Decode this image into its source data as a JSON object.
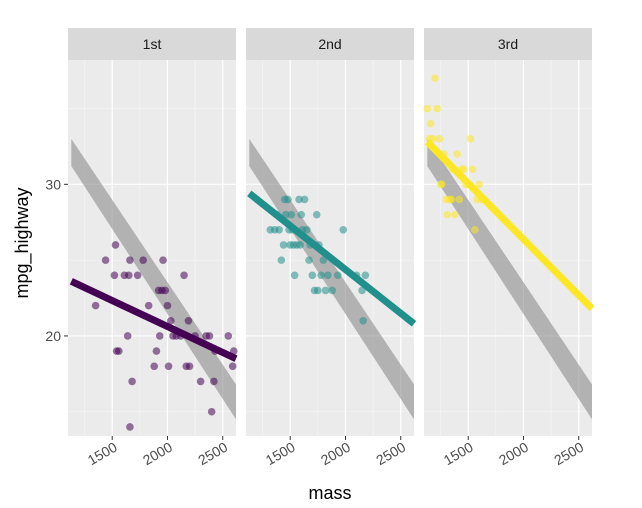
{
  "chart_data": {
    "type": "scatter",
    "facet_variable": "",
    "xlabel": "mass",
    "ylabel": "mpg_highway",
    "xlim": [
      1100,
      2620
    ],
    "ylim": [
      13.4,
      38.2
    ],
    "x_ticks": [
      1500,
      2000,
      2500
    ],
    "x_tick_labels": [
      "1500",
      "2000",
      "2500"
    ],
    "y_ticks": [
      20,
      30
    ],
    "y_tick_labels": [
      "20",
      "30"
    ],
    "grid": true,
    "legend": "none",
    "panels": [
      {
        "label": "1st",
        "color": "#440154",
        "points": [
          [
            1350,
            22
          ],
          [
            1440,
            25
          ],
          [
            1530,
            26
          ],
          [
            1520,
            24
          ],
          [
            1540,
            19
          ],
          [
            1560,
            19
          ],
          [
            1610,
            24
          ],
          [
            1640,
            20
          ],
          [
            1650,
            24
          ],
          [
            1660,
            25
          ],
          [
            1680,
            17
          ],
          [
            1660,
            14
          ],
          [
            1730,
            24
          ],
          [
            1780,
            25
          ],
          [
            1830,
            22
          ],
          [
            1880,
            18
          ],
          [
            1900,
            19
          ],
          [
            1920,
            23
          ],
          [
            1930,
            20
          ],
          [
            1950,
            23
          ],
          [
            1960,
            25
          ],
          [
            1980,
            23
          ],
          [
            2000,
            22
          ],
          [
            2010,
            18
          ],
          [
            2030,
            21
          ],
          [
            2050,
            20
          ],
          [
            2080,
            20
          ],
          [
            2120,
            20
          ],
          [
            2150,
            24
          ],
          [
            2170,
            18
          ],
          [
            2200,
            18
          ],
          [
            2190,
            21
          ],
          [
            2250,
            20
          ],
          [
            2300,
            17
          ],
          [
            2350,
            20
          ],
          [
            2380,
            20
          ],
          [
            2400,
            15
          ],
          [
            2420,
            17
          ],
          [
            2430,
            19
          ],
          [
            2550,
            20
          ],
          [
            2590,
            18
          ],
          [
            2600,
            19
          ]
        ],
        "fit_line": [
          [
            1130,
            23.6
          ],
          [
            2620,
            18.5
          ]
        ],
        "reference_band": {
          "x": [
            1130,
            2620
          ],
          "upper": [
            33.0,
            16.8
          ],
          "lower": [
            31.2,
            14.5
          ]
        }
      },
      {
        "label": "2nd",
        "color": "#21908c",
        "points": [
          [
            1320,
            27
          ],
          [
            1360,
            27
          ],
          [
            1380,
            28
          ],
          [
            1400,
            27
          ],
          [
            1420,
            25
          ],
          [
            1440,
            26
          ],
          [
            1450,
            29
          ],
          [
            1460,
            28
          ],
          [
            1480,
            29
          ],
          [
            1490,
            27
          ],
          [
            1500,
            26
          ],
          [
            1510,
            28
          ],
          [
            1520,
            27
          ],
          [
            1530,
            26
          ],
          [
            1540,
            24
          ],
          [
            1560,
            26
          ],
          [
            1580,
            29
          ],
          [
            1590,
            26
          ],
          [
            1600,
            28
          ],
          [
            1610,
            27
          ],
          [
            1630,
            29
          ],
          [
            1650,
            27
          ],
          [
            1670,
            25
          ],
          [
            1680,
            26
          ],
          [
            1700,
            24
          ],
          [
            1720,
            23
          ],
          [
            1740,
            28
          ],
          [
            1750,
            23
          ],
          [
            1760,
            26
          ],
          [
            1780,
            24
          ],
          [
            1800,
            25
          ],
          [
            1820,
            23
          ],
          [
            1840,
            24
          ],
          [
            1880,
            23
          ],
          [
            1930,
            24
          ],
          [
            1980,
            27
          ],
          [
            2100,
            24
          ],
          [
            2150,
            23
          ],
          [
            2160,
            21
          ],
          [
            2180,
            24
          ]
        ],
        "fit_line": [
          [
            1130,
            29.4
          ],
          [
            2620,
            20.8
          ]
        ],
        "reference_band": {
          "x": [
            1130,
            2620
          ],
          "upper": [
            33.0,
            16.8
          ],
          "lower": [
            31.2,
            14.5
          ]
        }
      },
      {
        "label": "3rd",
        "color": "#fde725",
        "points": [
          [
            1130,
            35
          ],
          [
            1150,
            33
          ],
          [
            1160,
            34
          ],
          [
            1180,
            33
          ],
          [
            1200,
            37
          ],
          [
            1220,
            35
          ],
          [
            1240,
            33
          ],
          [
            1250,
            30
          ],
          [
            1260,
            30
          ],
          [
            1280,
            32
          ],
          [
            1300,
            29
          ],
          [
            1310,
            28
          ],
          [
            1330,
            29
          ],
          [
            1350,
            29
          ],
          [
            1360,
            31
          ],
          [
            1380,
            28
          ],
          [
            1400,
            32
          ],
          [
            1420,
            29
          ],
          [
            1440,
            31
          ],
          [
            1460,
            31
          ],
          [
            1480,
            30
          ],
          [
            1520,
            33
          ],
          [
            1540,
            31
          ],
          [
            1560,
            27
          ],
          [
            1580,
            29
          ],
          [
            1600,
            30
          ],
          [
            1620,
            29
          ]
        ],
        "fit_line": [
          [
            1130,
            32.8
          ],
          [
            2620,
            21.8
          ]
        ],
        "reference_band": {
          "x": [
            1130,
            2620
          ],
          "upper": [
            33.0,
            16.8
          ],
          "lower": [
            31.2,
            14.5
          ]
        }
      }
    ]
  }
}
